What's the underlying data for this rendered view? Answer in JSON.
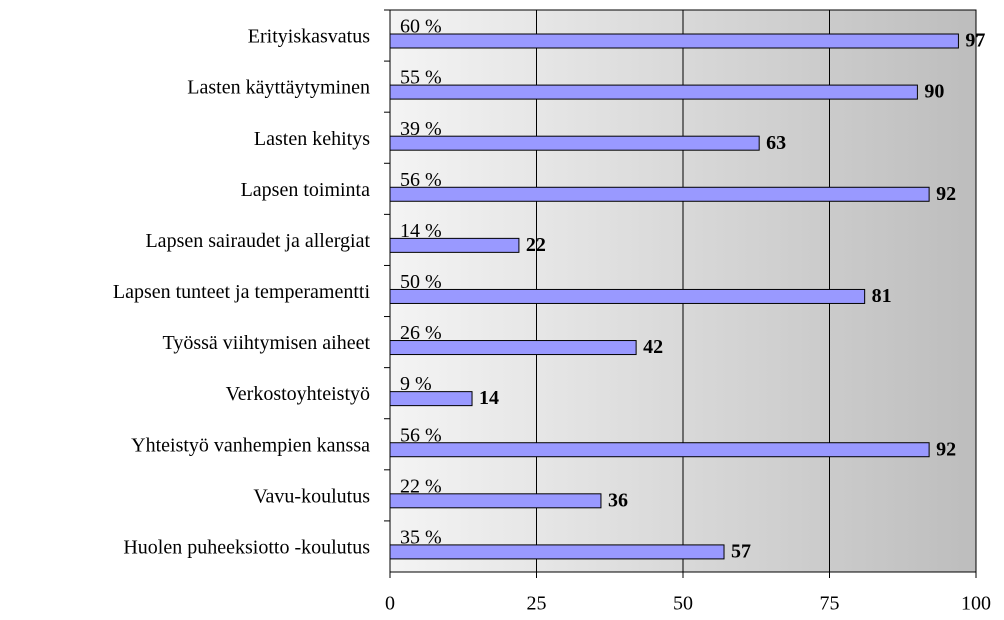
{
  "chart_data": {
    "type": "bar",
    "orientation": "horizontal",
    "categories": [
      "Erityiskasvatus",
      "Lasten käyttäytyminen",
      "Lasten kehitys",
      "Lapsen toiminta",
      "Lapsen sairaudet ja allergiat",
      "Lapsen tunteet ja temperamentti",
      "Työssä viihtymisen aiheet",
      "Verkostoyhteistyö",
      "Yhteistyö vanhempien kanssa",
      "Vavu-koulutus",
      "Huolen puheeksiotto -koulutus"
    ],
    "values": [
      97,
      90,
      63,
      92,
      22,
      81,
      42,
      14,
      92,
      36,
      57
    ],
    "percent_labels": [
      "60 %",
      "55 %",
      "39 %",
      "56 %",
      "14 %",
      "50 %",
      "26 %",
      "9 %",
      "56 %",
      "22 %",
      "35 %"
    ],
    "color": "#9999ff",
    "xlim": [
      0,
      100
    ],
    "xticks": [
      0,
      25,
      50,
      75,
      100
    ],
    "grid": true
  }
}
